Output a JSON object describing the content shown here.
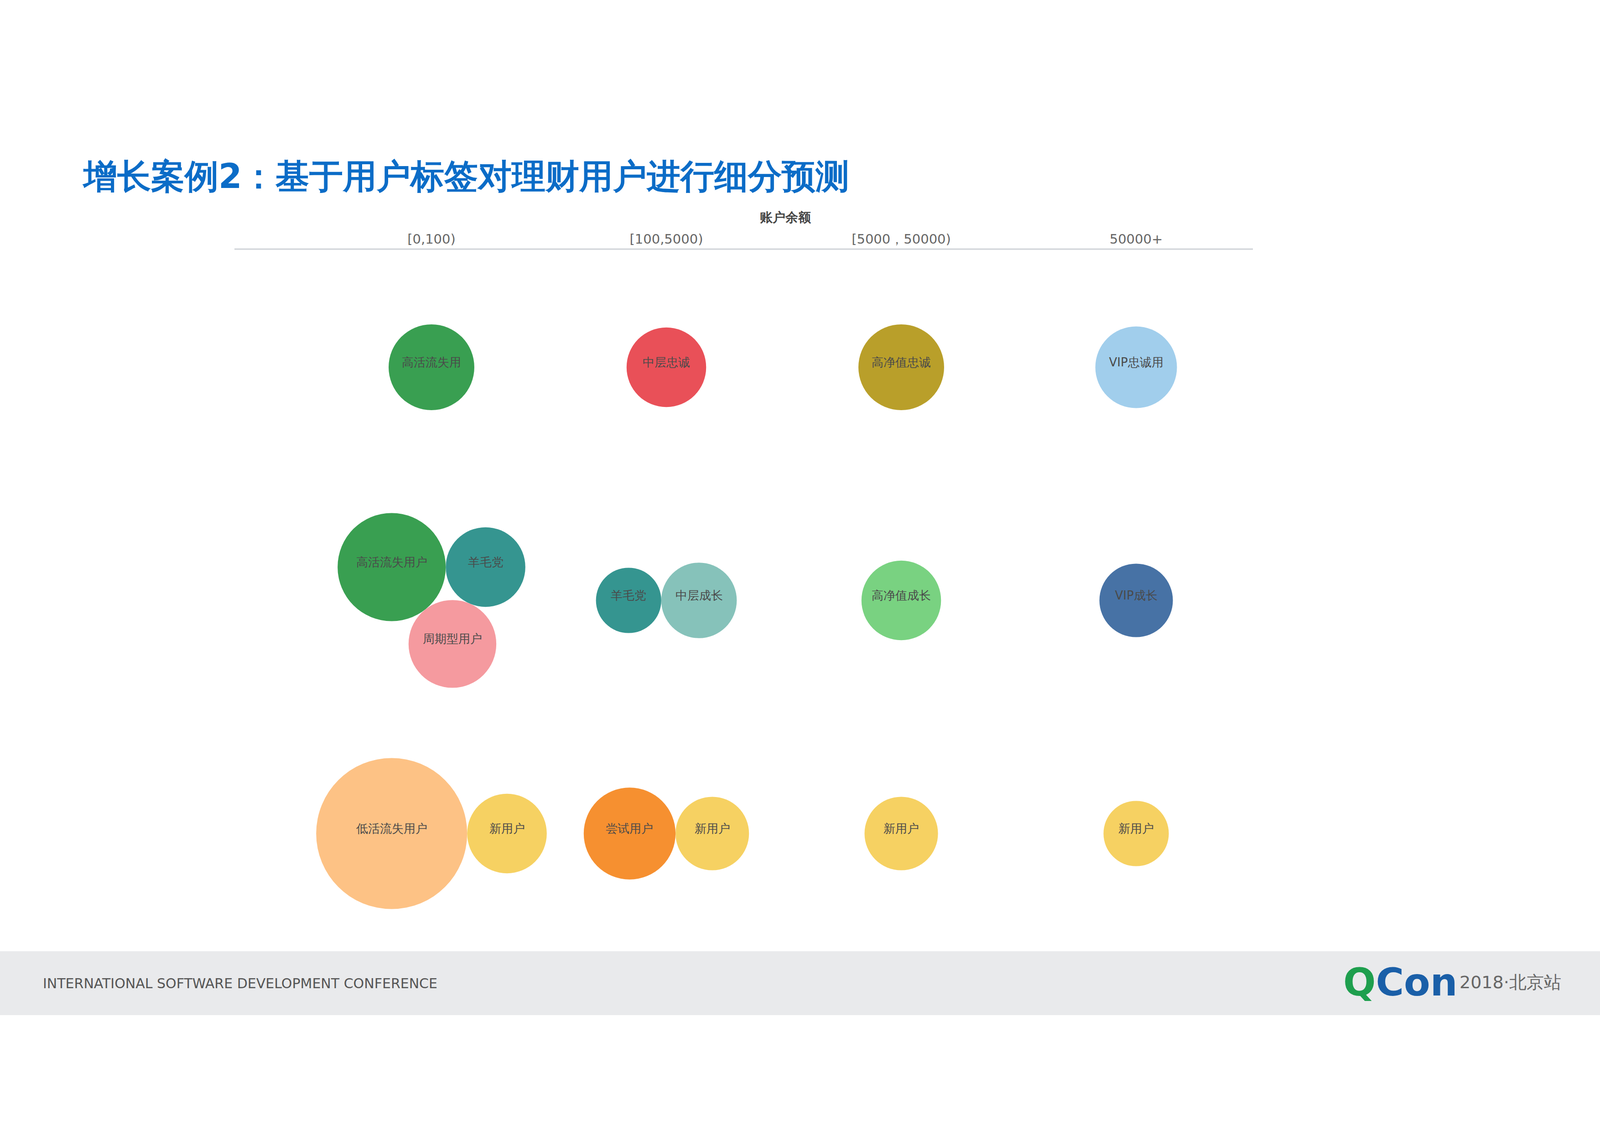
{
  "title": "增长案例2：基于用户标签对理财用户进行细分预测",
  "footer": {
    "conference": "INTERNATIONAL SOFTWARE DEVELOPMENT CONFERENCE",
    "logo": "QCon",
    "edition": "2018·北京站"
  },
  "chart_data": {
    "type": "bubble",
    "x_label": "账户余额",
    "categories": [
      "[0,100)",
      "[100,5000)",
      "[5000，50000)",
      "50000+"
    ],
    "rows": [
      null,
      null,
      null
    ],
    "bubbles": [
      {
        "label": "高活流失用",
        "column": 0,
        "row": 0,
        "size": 42,
        "color": "#2e9a48"
      },
      {
        "label": "中层忠诚",
        "column": 1,
        "row": 0,
        "size": 39,
        "color": "#e8474f"
      },
      {
        "label": "高净值忠诚",
        "column": 2,
        "row": 0,
        "size": 42,
        "color": "#b59a1f"
      },
      {
        "label": "VIP忠诚用",
        "column": 3,
        "row": 0,
        "size": 40,
        "color": "#9ccbeb"
      },
      {
        "label": "高活流失用户",
        "column": 0,
        "row": 1,
        "size": 53,
        "color": "#2e9a48"
      },
      {
        "label": "羊毛党",
        "column": 0,
        "row": 1,
        "size": 39,
        "color": "#2a8f8a"
      },
      {
        "label": "周期型用户",
        "column": 0,
        "row": 1,
        "size": 43,
        "color": "#f4959a"
      },
      {
        "label": "羊毛党",
        "column": 1,
        "row": 1,
        "size": 32,
        "color": "#2a8f8a"
      },
      {
        "label": "中层成长",
        "column": 1,
        "row": 1,
        "size": 37,
        "color": "#7fbfb6"
      },
      {
        "label": "高净值成长",
        "column": 2,
        "row": 1,
        "size": 39,
        "color": "#72d07a"
      },
      {
        "label": "VIP成长",
        "column": 3,
        "row": 1,
        "size": 36,
        "color": "#3d6aa0"
      },
      {
        "label": "低活流失用户",
        "column": 0,
        "row": 2,
        "size": 74,
        "color": "#fdbf7e"
      },
      {
        "label": "新用户",
        "column": 0,
        "row": 2,
        "size": 39,
        "color": "#f5cf5a"
      },
      {
        "label": "尝试用户",
        "column": 1,
        "row": 2,
        "size": 45,
        "color": "#f58a25"
      },
      {
        "label": "新用户",
        "column": 1,
        "row": 2,
        "size": 36,
        "color": "#f5cf5a"
      },
      {
        "label": "新用户",
        "column": 2,
        "row": 2,
        "size": 36,
        "color": "#f5cf5a"
      },
      {
        "label": "新用户",
        "column": 3,
        "row": 2,
        "size": 32,
        "color": "#f5cf5a"
      }
    ]
  }
}
